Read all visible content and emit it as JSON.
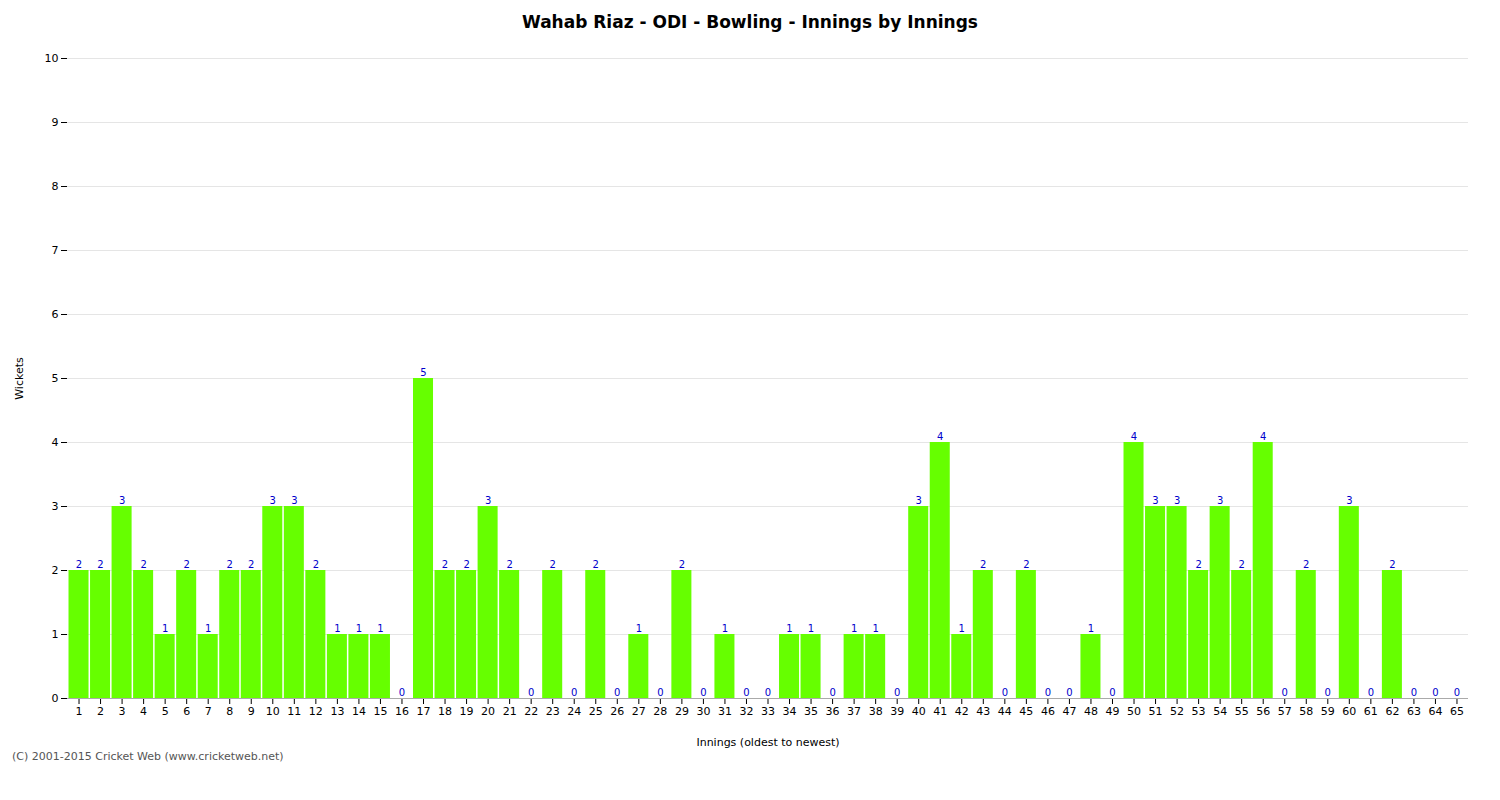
{
  "chart_data": {
    "type": "bar",
    "title": "Wahab Riaz - ODI - Bowling - Innings by Innings",
    "xlabel": "Innings (oldest to newest)",
    "ylabel": "Wickets",
    "categories": [
      "1",
      "2",
      "3",
      "4",
      "5",
      "6",
      "7",
      "8",
      "9",
      "10",
      "11",
      "12",
      "13",
      "14",
      "15",
      "16",
      "17",
      "18",
      "19",
      "20",
      "21",
      "22",
      "23",
      "24",
      "25",
      "26",
      "27",
      "28",
      "29",
      "30",
      "31",
      "32",
      "33",
      "34",
      "35",
      "36",
      "37",
      "38",
      "39",
      "40",
      "41",
      "42",
      "43",
      "44",
      "45",
      "46",
      "47",
      "48",
      "49",
      "50",
      "51",
      "52",
      "53",
      "54",
      "55",
      "56",
      "57",
      "58",
      "59",
      "60",
      "61",
      "62",
      "63",
      "64",
      "65"
    ],
    "values": [
      2,
      2,
      3,
      2,
      1,
      2,
      1,
      2,
      2,
      3,
      3,
      2,
      1,
      1,
      1,
      0,
      5,
      2,
      2,
      3,
      2,
      0,
      2,
      0,
      2,
      0,
      1,
      0,
      2,
      0,
      1,
      0,
      0,
      1,
      1,
      0,
      1,
      1,
      0,
      3,
      4,
      1,
      2,
      0,
      2,
      0,
      0,
      1,
      0,
      4,
      3,
      3,
      2,
      3,
      2,
      4,
      0,
      2,
      0,
      3,
      0,
      2,
      0,
      0,
      0
    ],
    "color": "#66ff00",
    "ylim": [
      0,
      10
    ],
    "yticks": [
      0,
      1,
      2,
      3,
      4,
      5,
      6,
      7,
      8,
      9,
      10
    ],
    "grid": true,
    "data_labels": true,
    "footer": "(C) 2001-2015 Cricket Web (www.cricketweb.net)"
  }
}
